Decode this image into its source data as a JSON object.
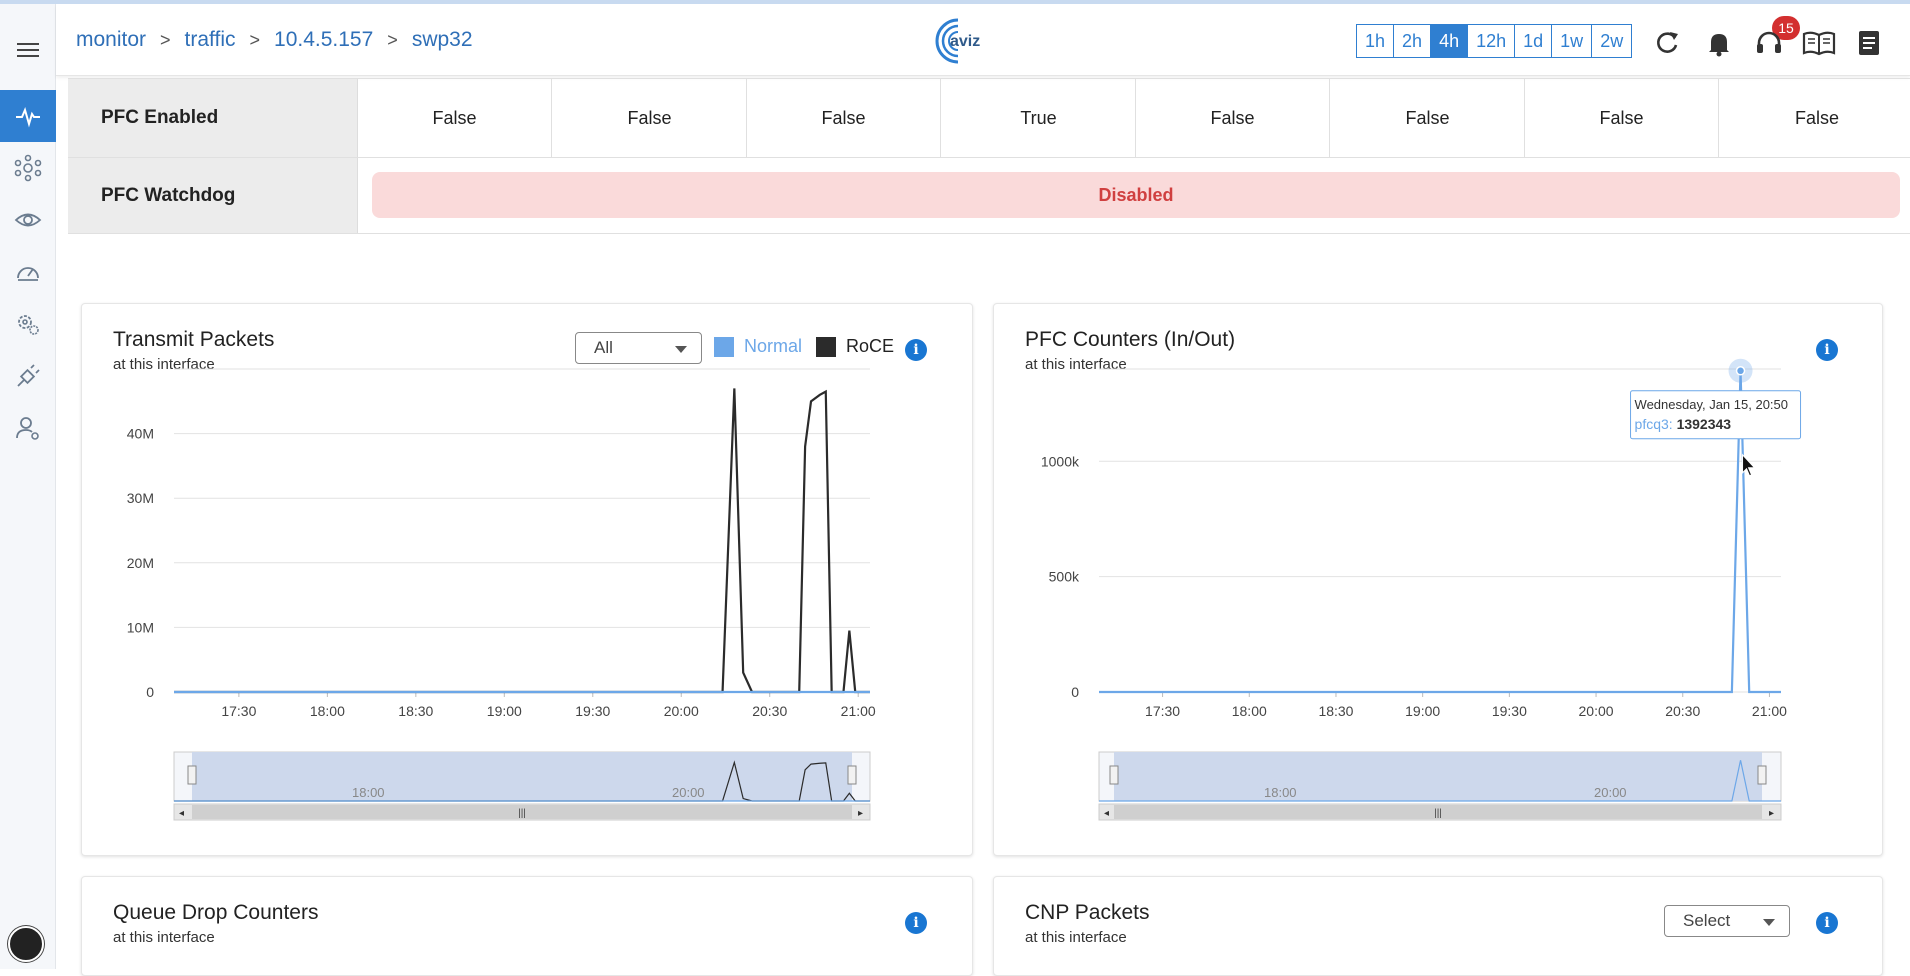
{
  "breadcrumb": [
    "monitor",
    "traffic",
    "10.4.5.157",
    "swp32"
  ],
  "logo_text": "aviz",
  "time_ranges": [
    "1h",
    "2h",
    "4h",
    "12h",
    "1d",
    "1w",
    "2w"
  ],
  "active_range": "4h",
  "notifications_count": "15",
  "pfc_enabled": {
    "label": "PFC Enabled",
    "values": [
      "False",
      "False",
      "False",
      "True",
      "False",
      "False",
      "False",
      "False"
    ]
  },
  "pfc_watchdog": {
    "label": "PFC Watchdog",
    "status": "Disabled"
  },
  "transmit_card": {
    "title": "Transmit Packets",
    "subtitle": "at this interface",
    "filter_value": "All",
    "legend": [
      {
        "name": "Normal",
        "color": "#6ca7e8"
      },
      {
        "name": "RoCE",
        "color": "#2b2b2b"
      }
    ]
  },
  "pfc_card": {
    "title": "PFC Counters (In/Out)",
    "subtitle": "at this interface",
    "tooltip": {
      "date": "Wednesday, Jan 15, 20:50",
      "series": "pfcq3",
      "value": "1392343"
    }
  },
  "queue_card": {
    "title": "Queue Drop Counters",
    "subtitle": "at this interface"
  },
  "cnp_card": {
    "title": "CNP Packets",
    "subtitle": "at this interface",
    "select_value": "Select"
  },
  "chart_data": [
    {
      "type": "line",
      "title": "Transmit Packets",
      "x_ticks": [
        "17:30",
        "18:00",
        "18:30",
        "19:00",
        "19:30",
        "20:00",
        "20:30",
        "21:00"
      ],
      "y_ticks": [
        "0",
        "10M",
        "20M",
        "30M",
        "40M"
      ],
      "ylim": [
        0,
        50000000
      ],
      "navigator_labels": [
        "18:00",
        "20:00"
      ],
      "series": [
        {
          "name": "RoCE",
          "color": "#2b2b2b",
          "points": [
            [
              "17:08",
              0
            ],
            [
              "20:10",
              0
            ],
            [
              "20:14",
              0
            ],
            [
              "20:18",
              47000000
            ],
            [
              "20:21",
              3000000
            ],
            [
              "20:24",
              0
            ],
            [
              "20:40",
              0
            ],
            [
              "20:42",
              38000000
            ],
            [
              "20:44",
              45000000
            ],
            [
              "20:47",
              46000000
            ],
            [
              "20:49",
              46500000
            ],
            [
              "20:51",
              0
            ],
            [
              "20:55",
              0
            ],
            [
              "20:57",
              9500000
            ],
            [
              "20:59",
              0
            ],
            [
              "21:04",
              0
            ]
          ]
        },
        {
          "name": "Normal",
          "color": "#6ca7e8",
          "points": [
            [
              "17:08",
              0
            ],
            [
              "21:04",
              0
            ]
          ]
        }
      ]
    },
    {
      "type": "line",
      "title": "PFC Counters (In/Out)",
      "x_ticks": [
        "17:30",
        "18:00",
        "18:30",
        "19:00",
        "19:30",
        "20:00",
        "20:30",
        "21:00"
      ],
      "y_ticks": [
        "0",
        "500k",
        "1000k"
      ],
      "ylim": [
        0,
        1400000
      ],
      "navigator_labels": [
        "18:00",
        "20:00"
      ],
      "series": [
        {
          "name": "pfcq3",
          "color": "#6ca7e8",
          "points": [
            [
              "17:08",
              0
            ],
            [
              "20:47",
              0
            ],
            [
              "20:50",
              1392343
            ],
            [
              "20:53",
              0
            ],
            [
              "21:04",
              0
            ]
          ]
        }
      ]
    }
  ]
}
